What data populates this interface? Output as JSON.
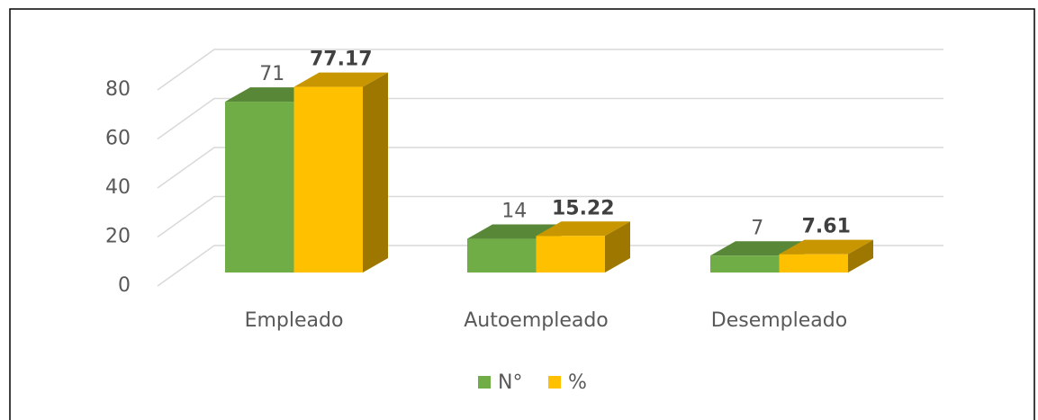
{
  "chart_data": {
    "type": "bar3d",
    "categories": [
      "Empleado",
      "Autoempleado",
      "Desempleado"
    ],
    "series": [
      {
        "name": "N°",
        "color": "#70ad47",
        "values": [
          71,
          14,
          7
        ]
      },
      {
        "name": "%",
        "color": "#ffc000",
        "values": [
          77.17,
          15.22,
          7.61
        ]
      }
    ],
    "ylim": [
      0,
      80
    ],
    "yticks": [
      0,
      20,
      40,
      60,
      80
    ],
    "grid": true,
    "legend": "bottom"
  }
}
